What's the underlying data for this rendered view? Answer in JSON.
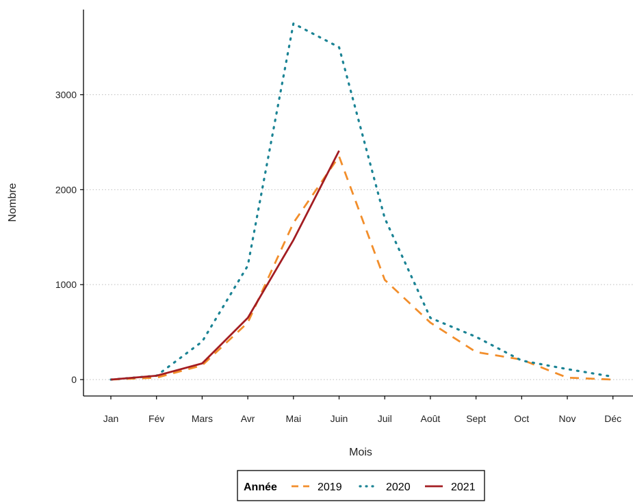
{
  "chart_data": {
    "type": "line",
    "title": "",
    "xlabel": "Mois",
    "ylabel": "Nombre",
    "categories": [
      "Jan",
      "Fév",
      "Mars",
      "Avr",
      "Mai",
      "Juin",
      "Juil",
      "Août",
      "Sept",
      "Oct",
      "Nov",
      "Déc"
    ],
    "ylim": [
      -150,
      3850
    ],
    "yticks": [
      0,
      1000,
      2000,
      3000
    ],
    "grid": "horizontal dotted",
    "legend_position": "bottom",
    "legend_title": "Année",
    "series": [
      {
        "name": "2019",
        "color": "#f28e2b",
        "style": "dashed",
        "values": [
          0,
          20,
          150,
          600,
          1650,
          2350,
          1050,
          600,
          290,
          210,
          20,
          0
        ]
      },
      {
        "name": "2020",
        "color": "#1b8394",
        "style": "dotted",
        "values": [
          0,
          40,
          400,
          1200,
          3750,
          3500,
          1700,
          650,
          450,
          200,
          110,
          30
        ]
      },
      {
        "name": "2021",
        "color": "#a31d22",
        "style": "solid",
        "values": [
          0,
          40,
          170,
          650,
          1470,
          2410,
          null,
          null,
          null,
          null,
          null,
          null
        ]
      }
    ]
  }
}
